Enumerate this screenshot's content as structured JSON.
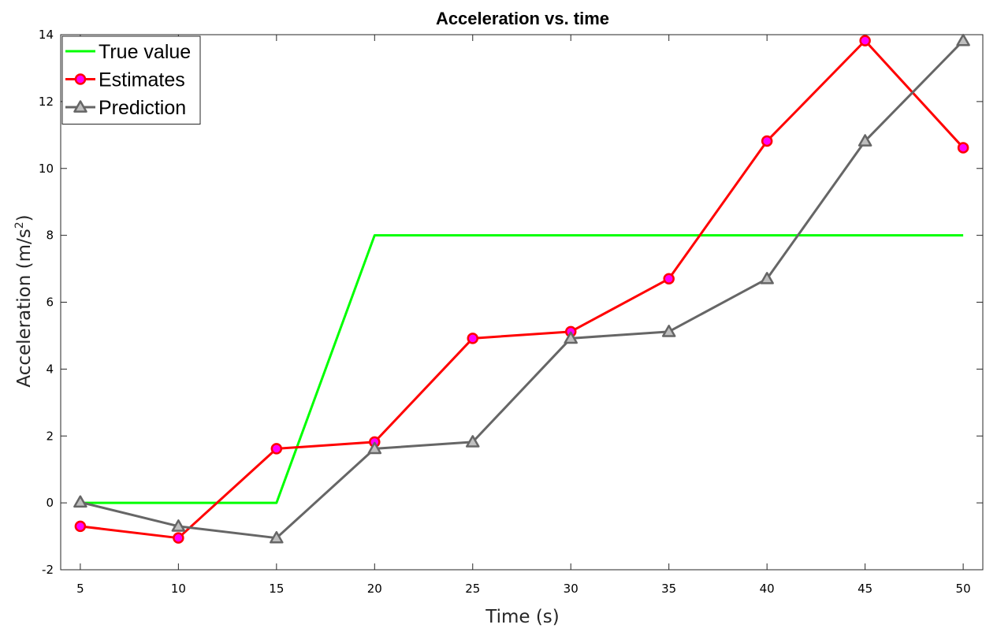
{
  "chart_data": {
    "type": "line",
    "title": "Acceleration vs. time",
    "xlabel": "Time (s)",
    "ylabel_main": "Acceleration (m/s",
    "ylabel_sup": "2",
    "ylabel_close": ")",
    "xlim": [
      4,
      51
    ],
    "ylim": [
      -2,
      14
    ],
    "xticks": [
      5,
      10,
      15,
      20,
      25,
      30,
      35,
      40,
      45,
      50
    ],
    "yticks": [
      -2,
      0,
      2,
      4,
      6,
      8,
      10,
      12,
      14
    ],
    "grid": false,
    "legend_position": "top-left",
    "series": [
      {
        "name": "True value",
        "color": "#00ff00",
        "marker": "none",
        "x": [
          5,
          10,
          15,
          20,
          25,
          30,
          35,
          40,
          45,
          50
        ],
        "y": [
          0,
          0,
          0,
          8,
          8,
          8,
          8,
          8,
          8,
          8
        ]
      },
      {
        "name": "Estimates",
        "color": "#ff0000",
        "marker": "circle",
        "marker_fill": "#ff00ff",
        "x": [
          5,
          10,
          15,
          20,
          25,
          30,
          35,
          40,
          45,
          50
        ],
        "y": [
          -0.7,
          -1.05,
          1.62,
          1.82,
          4.92,
          5.12,
          6.7,
          10.82,
          13.82,
          10.62
        ]
      },
      {
        "name": "Prediction",
        "color": "#666666",
        "marker": "triangle",
        "marker_fill": "#bfbfbf",
        "x": [
          5,
          10,
          15,
          20,
          25,
          30,
          35,
          40,
          45,
          50
        ],
        "y": [
          0.02,
          -0.7,
          -1.05,
          1.62,
          1.82,
          4.92,
          5.12,
          6.7,
          10.82,
          13.82
        ]
      }
    ]
  }
}
